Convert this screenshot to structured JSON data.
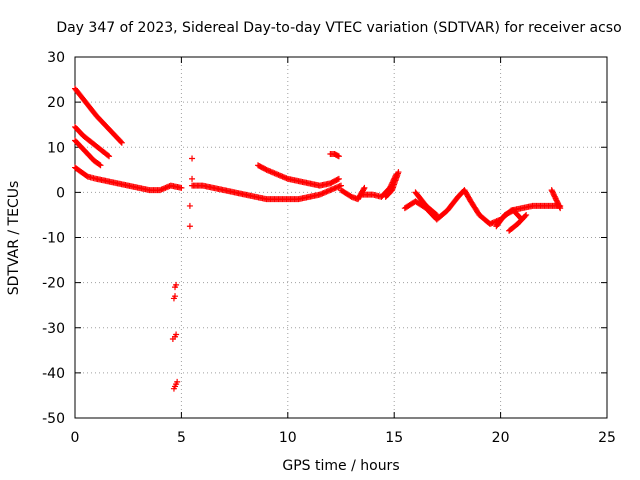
{
  "chart_data": {
    "type": "scatter",
    "title": "Day 347 of 2023, Sidereal Day-to-day VTEC variation (SDTVAR) for receiver acso",
    "xlabel": "GPS time / hours",
    "ylabel": "SDTVAR / TECUs",
    "xlim": [
      0,
      25
    ],
    "ylim": [
      -50,
      30
    ],
    "xticks": [
      "0",
      "5",
      "10",
      "15",
      "20",
      "25"
    ],
    "yticks": [
      "30",
      "20",
      "10",
      "0",
      "-10",
      "-20",
      "-30",
      "-40",
      "-50"
    ],
    "grid": true,
    "marker": "plus",
    "series_color": "#ff0000",
    "segments": [
      {
        "x": [
          0.0,
          0.5,
          1.0,
          1.5,
          2.0,
          2.2
        ],
        "y": [
          23.0,
          20.0,
          17.0,
          14.5,
          12.0,
          11.0
        ]
      },
      {
        "x": [
          0.0,
          0.4,
          0.8,
          1.2,
          1.6
        ],
        "y": [
          14.5,
          12.5,
          11.0,
          9.5,
          8.0
        ]
      },
      {
        "x": [
          0.0,
          0.3,
          0.6,
          0.9,
          1.2
        ],
        "y": [
          11.5,
          10.0,
          8.5,
          7.0,
          6.0
        ]
      },
      {
        "x": [
          0.0,
          0.3,
          0.6,
          1.0,
          1.5,
          2.0,
          2.5,
          3.0,
          3.5,
          4.0,
          4.5,
          5.0
        ],
        "y": [
          5.5,
          4.5,
          3.5,
          3.0,
          2.5,
          2.0,
          1.5,
          1.0,
          0.5,
          0.5,
          1.5,
          1.0
        ]
      },
      {
        "x": [
          5.5,
          6.0,
          6.5,
          7.0,
          7.5,
          8.0,
          8.5,
          9.0,
          9.5,
          10.0,
          10.5,
          11.0,
          11.5,
          12.0,
          12.5
        ],
        "y": [
          1.5,
          1.5,
          1.0,
          0.5,
          0.0,
          -0.5,
          -1.0,
          -1.5,
          -1.5,
          -1.5,
          -1.5,
          -1.0,
          -0.5,
          0.5,
          1.5
        ]
      },
      {
        "x": [
          8.6,
          9.0,
          9.5,
          10.0,
          10.5,
          11.0,
          11.5,
          12.0,
          12.4
        ],
        "y": [
          6.0,
          5.0,
          4.0,
          3.0,
          2.5,
          2.0,
          1.5,
          2.0,
          3.0
        ]
      },
      {
        "x": [
          12.0,
          12.2,
          12.4
        ],
        "y": [
          8.5,
          8.5,
          8.0
        ]
      },
      {
        "x": [
          12.5,
          13.0,
          13.3,
          13.6
        ],
        "y": [
          0.5,
          -1.0,
          -1.5,
          1.0
        ]
      },
      {
        "x": [
          13.5,
          14.0,
          14.4,
          14.8,
          15.1
        ],
        "y": [
          -0.5,
          -0.5,
          -1.0,
          1.0,
          4.0
        ]
      },
      {
        "x": [
          14.6,
          14.9,
          15.2
        ],
        "y": [
          -1.0,
          0.5,
          4.5
        ]
      },
      {
        "x": [
          15.5,
          16.0,
          16.5,
          17.0,
          17.5,
          18.0,
          18.3,
          18.6,
          19.0,
          19.5,
          20.0,
          20.5,
          21.0,
          21.5,
          22.0,
          22.5,
          22.8
        ],
        "y": [
          -3.5,
          -2.0,
          -3.5,
          -6.0,
          -4.0,
          -1.0,
          0.5,
          -2.0,
          -5.0,
          -7.0,
          -6.0,
          -4.0,
          -3.5,
          -3.0,
          -3.0,
          -3.0,
          -3.0
        ]
      },
      {
        "x": [
          16.0,
          16.5,
          17.0
        ],
        "y": [
          0.0,
          -3.0,
          -5.0
        ]
      },
      {
        "x": [
          19.8,
          20.2,
          20.6,
          21.0
        ],
        "y": [
          -7.5,
          -5.0,
          -4.0,
          -6.0
        ]
      },
      {
        "x": [
          20.4,
          20.8,
          21.2
        ],
        "y": [
          -8.5,
          -7.0,
          -5.0
        ]
      },
      {
        "x": [
          22.4,
          22.6,
          22.8
        ],
        "y": [
          0.5,
          -1.5,
          -3.5
        ]
      }
    ],
    "points": [
      {
        "x": 5.5,
        "y": 7.5
      },
      {
        "x": 5.5,
        "y": 3.0
      },
      {
        "x": 5.4,
        "y": -3.0
      },
      {
        "x": 5.4,
        "y": -7.5
      },
      {
        "x": 4.7,
        "y": -21.0
      },
      {
        "x": 4.75,
        "y": -20.5
      },
      {
        "x": 4.65,
        "y": -23.5
      },
      {
        "x": 4.7,
        "y": -23.0
      },
      {
        "x": 4.6,
        "y": -32.5
      },
      {
        "x": 4.7,
        "y": -32.0
      },
      {
        "x": 4.75,
        "y": -31.5
      },
      {
        "x": 4.65,
        "y": -43.5
      },
      {
        "x": 4.7,
        "y": -43.0
      },
      {
        "x": 4.75,
        "y": -42.5
      },
      {
        "x": 4.8,
        "y": -42.0
      }
    ]
  }
}
